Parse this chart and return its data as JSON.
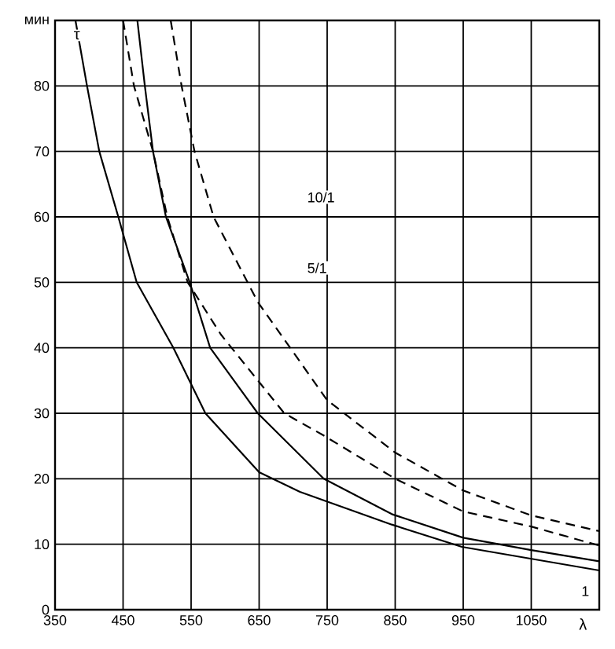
{
  "chart_data": {
    "type": "line",
    "xlabel": "λ",
    "ylabel": "τ",
    "xlim": [
      350,
      1150
    ],
    "xticks": [
      350,
      450,
      550,
      650,
      750,
      850,
      950,
      1050
    ],
    "ylim": [
      0,
      90
    ],
    "yticks": [
      0,
      10,
      20,
      30,
      40,
      50,
      60,
      70,
      80,
      {
        "value": 90,
        "label": "мин"
      }
    ],
    "grid": true,
    "marker": "none",
    "series": [
      {
        "color": "#000000",
        "line_style": "solid",
        "x": [
          380,
          397,
          415,
          443,
          470,
          524,
          571,
          650,
          710,
          845,
          948,
          1150
        ],
        "values": [
          90,
          80,
          70,
          60,
          50,
          40,
          30,
          21,
          18,
          13,
          9.6,
          6
        ]
      },
      {
        "color": "#000000",
        "line_style": "solid",
        "x": [
          471,
          482,
          494,
          513,
          548,
          578,
          648,
          745,
          845,
          950,
          1050,
          1150
        ],
        "values": [
          90,
          80,
          70,
          60,
          50,
          40,
          30,
          20,
          14.6,
          11,
          9.1,
          7.4
        ]
      },
      {
        "color": "#000000",
        "line_style": "dashed",
        "x": [
          450,
          466,
          494,
          515,
          545,
          594,
          687,
          745,
          850,
          950,
          1050,
          1150
        ],
        "values": [
          90,
          80,
          70,
          60,
          50,
          42,
          30,
          26.6,
          20,
          15,
          12.7,
          9.8
        ]
      },
      {
        "color": "#000000",
        "line_style": "dashed",
        "x": [
          520,
          536,
          555,
          583,
          648,
          750,
          850,
          950,
          1050,
          1150
        ],
        "values": [
          90,
          80,
          70,
          60,
          47,
          32,
          24,
          18.2,
          14.4,
          12
        ]
      }
    ],
    "annotations": [
      "10/1",
      "5/1",
      "1"
    ]
  }
}
